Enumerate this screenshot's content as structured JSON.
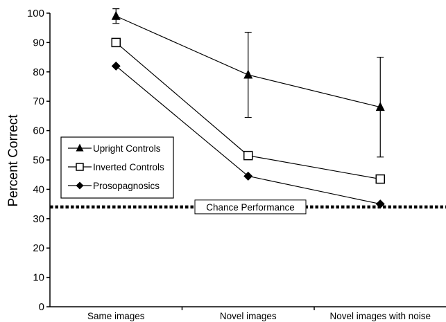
{
  "chart_data": {
    "type": "line",
    "title": "",
    "xlabel": "",
    "ylabel": "Percent Correct",
    "ylim": [
      0,
      100
    ],
    "yticks": [
      0,
      10,
      20,
      30,
      40,
      50,
      60,
      70,
      80,
      90,
      100
    ],
    "categories": [
      "Same images",
      "Novel images",
      "Novel images with noise"
    ],
    "series": [
      {
        "name": "Upright Controls",
        "marker": "triangle-filled",
        "values": [
          99,
          79,
          68
        ],
        "error": [
          2.5,
          14.5,
          17
        ]
      },
      {
        "name": "Inverted Controls",
        "marker": "square-open",
        "values": [
          90,
          51.5,
          43.5
        ]
      },
      {
        "name": "Prosopagnosics",
        "marker": "diamond-filled",
        "values": [
          82,
          44.5,
          35
        ]
      }
    ],
    "reference_line": {
      "label": "Chance Performance",
      "value": 34,
      "style": "dotted"
    },
    "legend_position": "left",
    "grid": false
  }
}
